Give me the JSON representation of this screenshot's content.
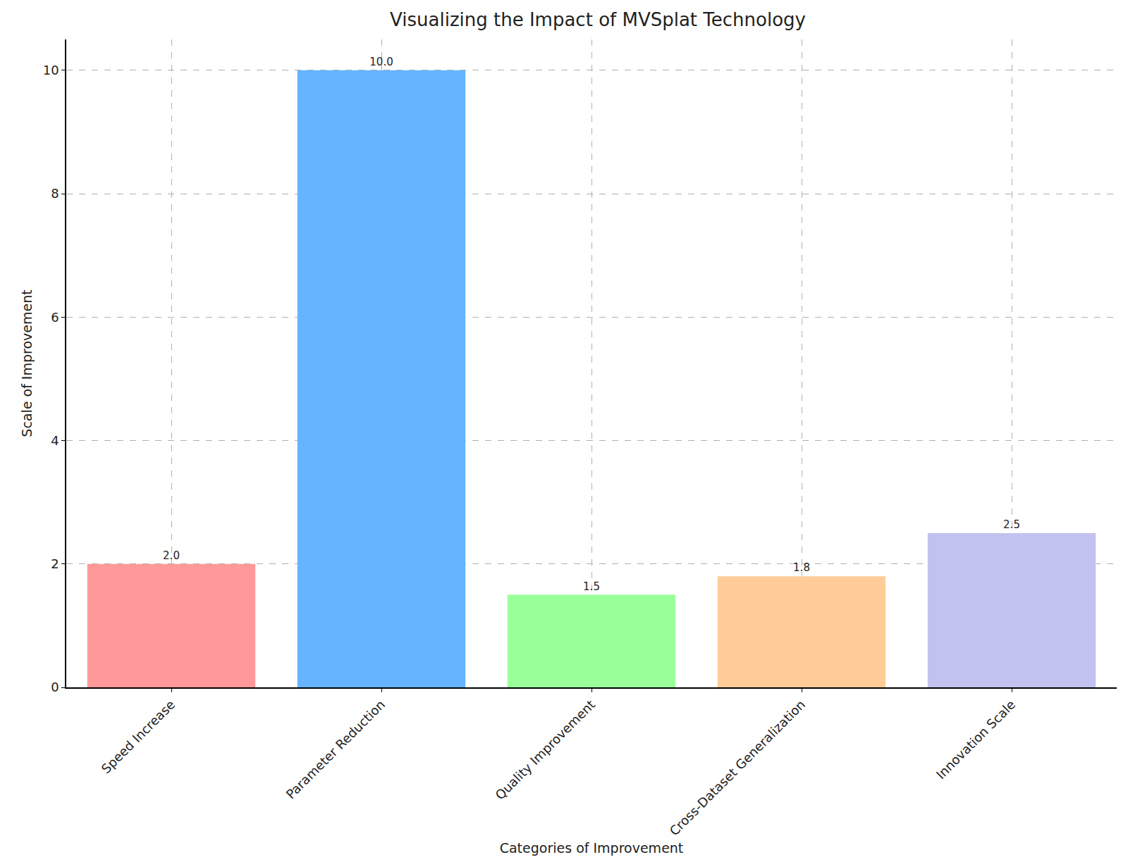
{
  "chart_data": {
    "type": "bar",
    "title": "Visualizing the Impact of MVSplat Technology",
    "x_label": "Categories of Improvement",
    "y_label": "Scale of Improvement",
    "categories": [
      "Speed Increase",
      "Parameter Reduction",
      "Quality Improvement",
      "Cross-Dataset Generalization",
      "Innovation Scale"
    ],
    "values": [
      2.0,
      10.0,
      1.5,
      1.8,
      2.5
    ],
    "value_labels": [
      "2.0",
      "10.0",
      "1.5",
      "1.8",
      "2.5"
    ],
    "colors": [
      "#ff9999",
      "#66b3ff",
      "#99ff99",
      "#ffcc99",
      "#c2c2f0"
    ],
    "ylim": [
      0,
      10.5
    ],
    "yticks": [
      0,
      2,
      4,
      6,
      8,
      10
    ],
    "grid": true,
    "data_labels": true
  }
}
